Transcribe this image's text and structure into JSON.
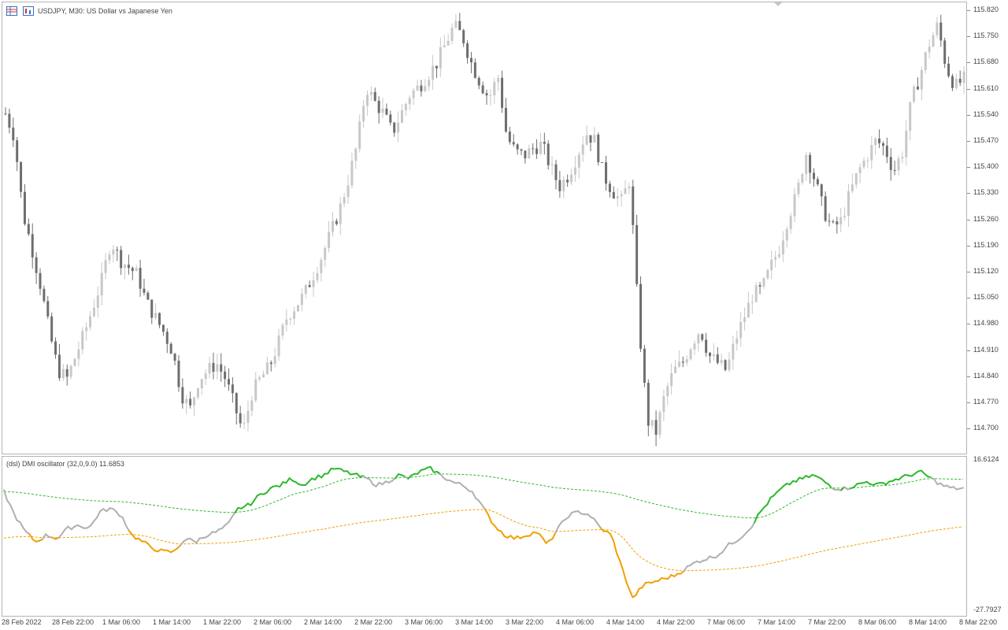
{
  "header": {
    "symbol_text": "USDJPY, M30:  US Dollar vs Japanese Yen",
    "icons": [
      "table-icon",
      "chart-icon"
    ]
  },
  "indicator": {
    "label": "(dsl) DMI oscillator  (32,0,9.0) 11.6853",
    "top_value": "16.6124",
    "bottom_value": "-27.7927"
  },
  "price_axis": [
    "115.820",
    "115.750",
    "115.680",
    "115.610",
    "115.540",
    "115.470",
    "115.400",
    "115.330",
    "115.260",
    "115.190",
    "115.120",
    "115.050",
    "114.980",
    "114.910",
    "114.840",
    "114.770",
    "114.700"
  ],
  "time_axis": [
    "28 Feb 2022",
    "28 Feb 22:00",
    "1 Mar 06:00",
    "1 Mar 14:00",
    "1 Mar 22:00",
    "2 Mar 06:00",
    "2 Mar 14:00",
    "2 Mar 22:00",
    "3 Mar 06:00",
    "3 Mar 14:00",
    "3 Mar 22:00",
    "4 Mar 06:00",
    "4 Mar 14:00",
    "4 Mar 22:00",
    "7 Mar 06:00",
    "7 Mar 14:00",
    "7 Mar 22:00",
    "8 Mar 06:00",
    "8 Mar 14:00",
    "8 Mar 22:00"
  ],
  "colors": {
    "bull": "#c8c8c8",
    "bear": "#6e6e6e",
    "up_line": "#2eb82e",
    "down_line": "#f0a000",
    "neutral_line": "#b0b0b0"
  },
  "chart_data": [
    {
      "type": "candlestick",
      "title": "USDJPY, M30",
      "ylim": [
        114.66,
        115.84
      ],
      "close_path": [
        115.55,
        115.49,
        115.29,
        115.2,
        115.1,
        114.98,
        114.88,
        114.86,
        114.92,
        114.98,
        115.05,
        115.12,
        115.22,
        115.17,
        115.15,
        115.13,
        115.06,
        115.02,
        114.98,
        114.93,
        114.82,
        114.78,
        114.86,
        114.88,
        114.9,
        114.86,
        114.79,
        114.72,
        114.82,
        114.86,
        114.89,
        114.95,
        115.02,
        115.05,
        115.08,
        115.13,
        115.18,
        115.24,
        115.3,
        115.38,
        115.47,
        115.62,
        115.58,
        115.55,
        115.5,
        115.55,
        115.6,
        115.62,
        115.65,
        115.68,
        115.73,
        115.78,
        115.75,
        115.68,
        115.63,
        115.59,
        115.65,
        115.49,
        115.45,
        115.44,
        115.46,
        115.47,
        115.41,
        115.36,
        115.39,
        115.44,
        115.5,
        115.48,
        115.39,
        115.35,
        115.32,
        115.38,
        115.01,
        114.75,
        114.72,
        114.82,
        114.88,
        114.9,
        114.95,
        114.99,
        114.92,
        114.9,
        114.88,
        114.96,
        115.02,
        115.08,
        115.09,
        115.15,
        115.2,
        115.28,
        115.34,
        115.45,
        115.38,
        115.3,
        115.25,
        115.27,
        115.34,
        115.4,
        115.44,
        115.48,
        115.46,
        115.4,
        115.45,
        115.58,
        115.65,
        115.73,
        115.78,
        115.67,
        115.62,
        115.64
      ]
    },
    {
      "type": "line",
      "title": "(dsl) DMI oscillator",
      "ylim": [
        -27.7927,
        16.6124
      ],
      "value": 11.6853,
      "osc_path": [
        8,
        1,
        -4,
        -7,
        -5,
        -6,
        -3,
        -2,
        -3,
        2,
        3,
        1,
        -5,
        -7,
        -9,
        -10,
        -10,
        -6,
        -7,
        -5,
        -4,
        -2,
        3,
        4,
        7,
        9,
        10,
        12,
        10,
        12,
        13,
        15,
        14,
        13,
        12,
        10,
        11,
        13,
        12,
        14,
        15,
        13,
        11,
        10,
        8,
        3,
        -2,
        -5,
        -6,
        -5,
        -4,
        -8,
        -3,
        1,
        2,
        1,
        -3,
        -5,
        -15,
        -24,
        -20,
        -19,
        -18,
        -17,
        -15,
        -13,
        -12,
        -11,
        -8,
        -6,
        -3,
        2,
        6,
        9,
        11,
        12,
        13,
        11,
        9,
        9,
        10,
        11,
        10,
        11,
        12,
        13,
        14,
        12,
        10,
        9,
        9
      ]
    }
  ]
}
